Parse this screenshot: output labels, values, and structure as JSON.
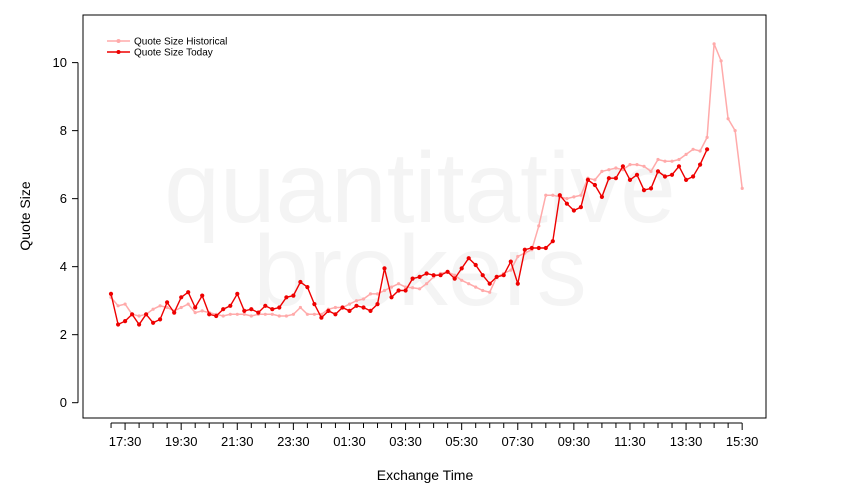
{
  "watermark": {
    "line1": "quantitative",
    "line2": "brokers"
  },
  "chart_data": {
    "type": "line",
    "title": "",
    "xlabel": "Exchange Time",
    "ylabel": "Quote Size",
    "x_tick_labels": [
      "17:30",
      "19:30",
      "21:30",
      "23:30",
      "01:30",
      "03:30",
      "05:30",
      "07:30",
      "09:30",
      "11:30",
      "13:30",
      "15:30"
    ],
    "y_ticks": [
      0,
      2,
      4,
      6,
      8,
      10
    ],
    "y_range": [
      -0.45,
      11.4
    ],
    "x_range_hours": [
      -1.0,
      23.35
    ],
    "x_origin_time": "16:45",
    "x_step_minutes": 15,
    "legend": {
      "position": "top-left"
    },
    "grid": false,
    "series": [
      {
        "name": "Quote Size Historical",
        "color": "#ffaaaa",
        "values": [
          3.1,
          2.85,
          2.9,
          2.6,
          2.55,
          2.6,
          2.75,
          2.85,
          2.8,
          2.7,
          2.8,
          2.9,
          2.65,
          2.7,
          2.65,
          2.6,
          2.55,
          2.6,
          2.6,
          2.6,
          2.55,
          2.6,
          2.6,
          2.6,
          2.55,
          2.55,
          2.6,
          2.8,
          2.6,
          2.6,
          2.6,
          2.75,
          2.8,
          2.8,
          2.9,
          3.0,
          3.05,
          3.2,
          3.2,
          3.3,
          3.4,
          3.5,
          3.4,
          3.38,
          3.35,
          3.5,
          3.7,
          3.8,
          3.85,
          3.75,
          3.6,
          3.5,
          3.4,
          3.3,
          3.25,
          3.7,
          3.8,
          3.9,
          4.3,
          4.4,
          4.5,
          5.2,
          6.1,
          6.1,
          6.05,
          6.0,
          6.05,
          6.1,
          6.6,
          6.55,
          6.8,
          6.85,
          6.9,
          6.85,
          7.0,
          7.0,
          6.95,
          6.8,
          7.15,
          7.1,
          7.1,
          7.15,
          7.3,
          7.45,
          7.4,
          7.8,
          10.55,
          10.05,
          8.35,
          8.0,
          6.3
        ]
      },
      {
        "name": "Quote Size Today",
        "color": "#ee0000",
        "values": [
          3.2,
          2.3,
          2.4,
          2.6,
          2.3,
          2.6,
          2.35,
          2.45,
          2.95,
          2.65,
          3.1,
          3.25,
          2.8,
          3.15,
          2.6,
          2.55,
          2.75,
          2.85,
          3.2,
          2.7,
          2.75,
          2.65,
          2.85,
          2.75,
          2.8,
          3.1,
          3.15,
          3.55,
          3.4,
          2.9,
          2.5,
          2.7,
          2.6,
          2.8,
          2.7,
          2.85,
          2.8,
          2.7,
          2.9,
          3.95,
          3.1,
          3.3,
          3.3,
          3.65,
          3.7,
          3.8,
          3.75,
          3.75,
          3.85,
          3.65,
          3.95,
          4.25,
          4.05,
          3.75,
          3.5,
          3.7,
          3.75,
          4.15,
          3.5,
          4.5,
          4.55,
          4.55,
          4.55,
          4.75,
          6.1,
          5.85,
          5.65,
          5.75,
          6.55,
          6.4,
          6.05,
          6.6,
          6.6,
          6.95,
          6.55,
          6.7,
          6.25,
          6.3,
          6.8,
          6.65,
          6.7,
          6.95,
          6.55,
          6.65,
          7.0,
          7.45
        ]
      }
    ]
  }
}
